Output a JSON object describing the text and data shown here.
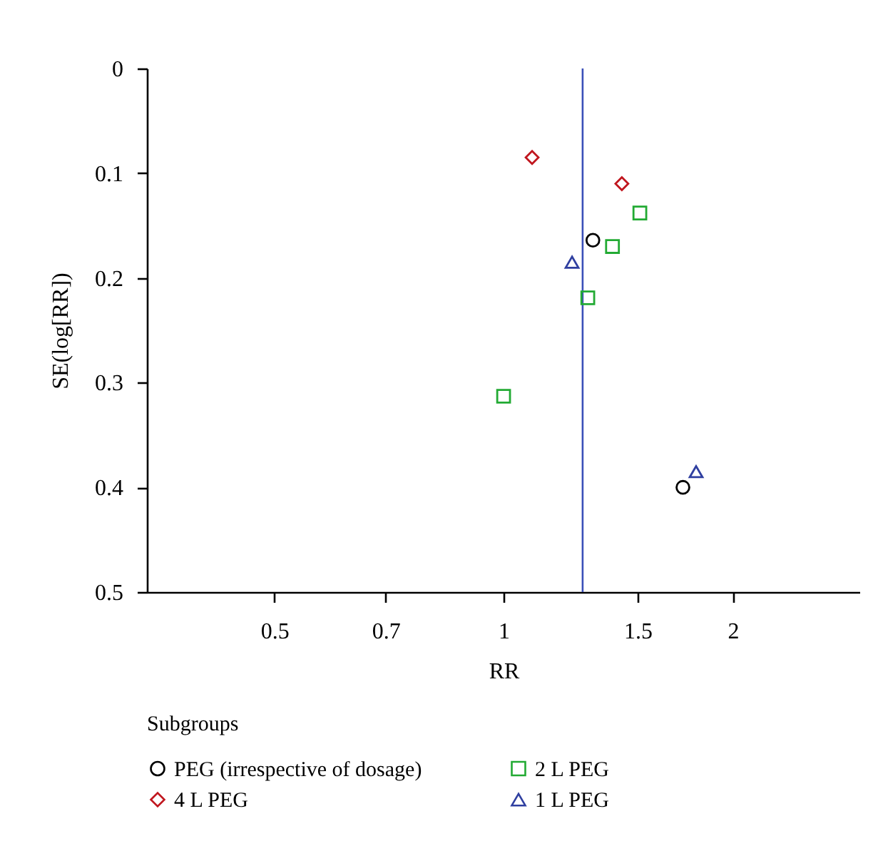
{
  "chart_data": {
    "type": "scatter",
    "xlabel": "RR",
    "ylabel": "SE(log[RR])",
    "legend_title": "Subgroups",
    "legend": "bottom",
    "log": "x",
    "xlim": [
      0.34,
      2.94
    ],
    "xticks": [
      0.5,
      0.7,
      1,
      1.5,
      2
    ],
    "ylim": [
      0.5,
      0
    ],
    "yticks": [
      0,
      0.1,
      0.2,
      0.3,
      0.4,
      0.5
    ],
    "ref_lines": [
      {
        "axis": "x",
        "value": 1.27,
        "color": "#3a4fb8"
      }
    ],
    "series": [
      {
        "name": "PEG (irrespective of dosage)",
        "color": "#000000",
        "marker": "circle",
        "x": [
          1.31,
          1.72
        ],
        "values": [
          0.164,
          0.4
        ]
      },
      {
        "name": "2 L PEG",
        "color": "#22aa33",
        "marker": "square",
        "x": [
          1.39,
          1.51,
          1.29,
          1.0
        ],
        "values": [
          0.17,
          0.138,
          0.219,
          0.313
        ]
      },
      {
        "name": "4 L PEG",
        "color": "#c0161e",
        "marker": "diamond",
        "x": [
          1.09,
          1.43
        ],
        "values": [
          0.085,
          0.11
        ]
      },
      {
        "name": "1 L PEG",
        "color": "#2f3fa0",
        "marker": "triangle",
        "x": [
          1.23,
          1.79
        ],
        "values": [
          0.185,
          0.385
        ]
      }
    ]
  }
}
